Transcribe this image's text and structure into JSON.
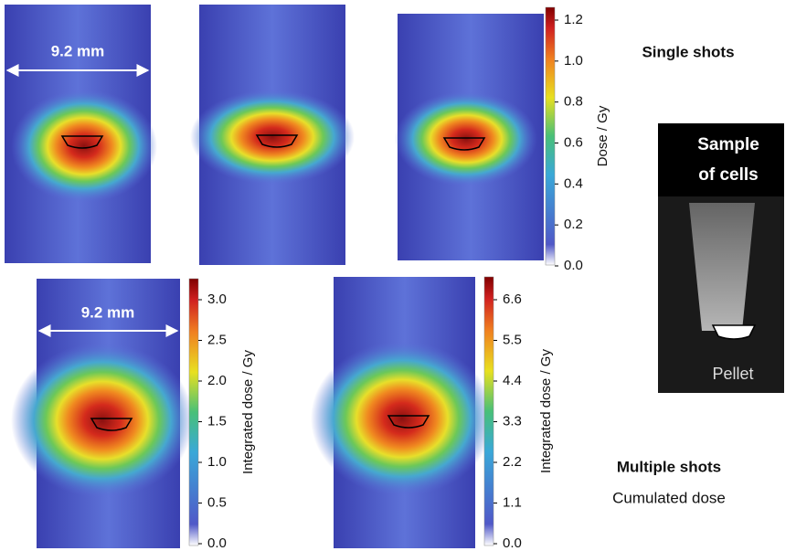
{
  "top_row": {
    "scale_label": "9.2 mm",
    "title": "Single shots",
    "colorbar": {
      "label": "Dose / Gy",
      "ticks": [
        "1.2",
        "1.0",
        "0.8",
        "0.6",
        "0.4",
        "0.2",
        "0.0"
      ]
    }
  },
  "bottom_row": {
    "scale_label": "9.2 mm",
    "title": "Multiple shots",
    "subtitle": "Cumulated dose",
    "colorbars": [
      {
        "label": "Integrated dose / Gy",
        "ticks": [
          "3.0",
          "2.5",
          "2.0",
          "1.5",
          "1.0",
          "0.5",
          "0.0"
        ]
      },
      {
        "label": "Integrated dose / Gy",
        "ticks": [
          "6.6",
          "5.5",
          "4.4",
          "3.3",
          "2.2",
          "1.1",
          "0.0"
        ]
      }
    ]
  },
  "sample": {
    "title_lines": [
      "Sample",
      "of cells"
    ],
    "pellet": "Pellet"
  }
}
